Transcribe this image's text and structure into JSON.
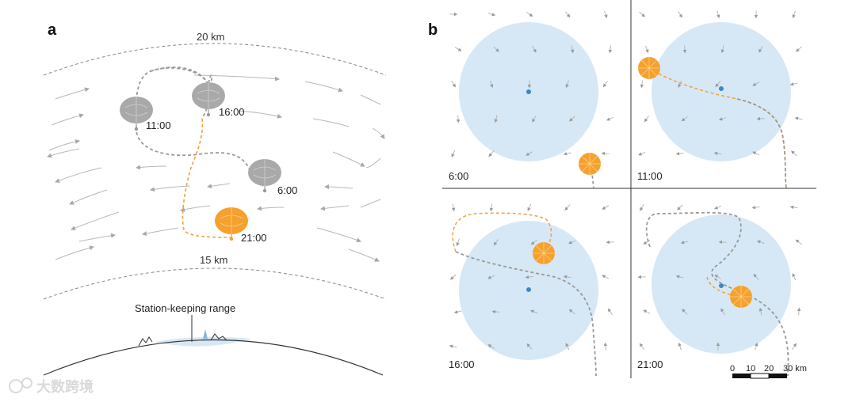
{
  "panel_a": {
    "letter": "a",
    "altitude_top": "20 km",
    "altitude_bottom": "15 km",
    "station_label": "Station-keeping range",
    "times": [
      "11:00",
      "16:00",
      "6:00",
      "21:00"
    ]
  },
  "panel_b": {
    "letter": "b",
    "times": [
      "6:00",
      "11:00",
      "16:00",
      "21:00"
    ],
    "scale_ticks": [
      "0",
      "10",
      "20",
      "30 km"
    ]
  },
  "colors": {
    "balloon_orange": "#f5a12e",
    "balloon_grey": "#a9a9a9",
    "range_blue": "#d6e8f5",
    "center_dot": "#3b88c9",
    "arrow_grey": "#b0b0b0"
  },
  "watermark": "大数跨境"
}
